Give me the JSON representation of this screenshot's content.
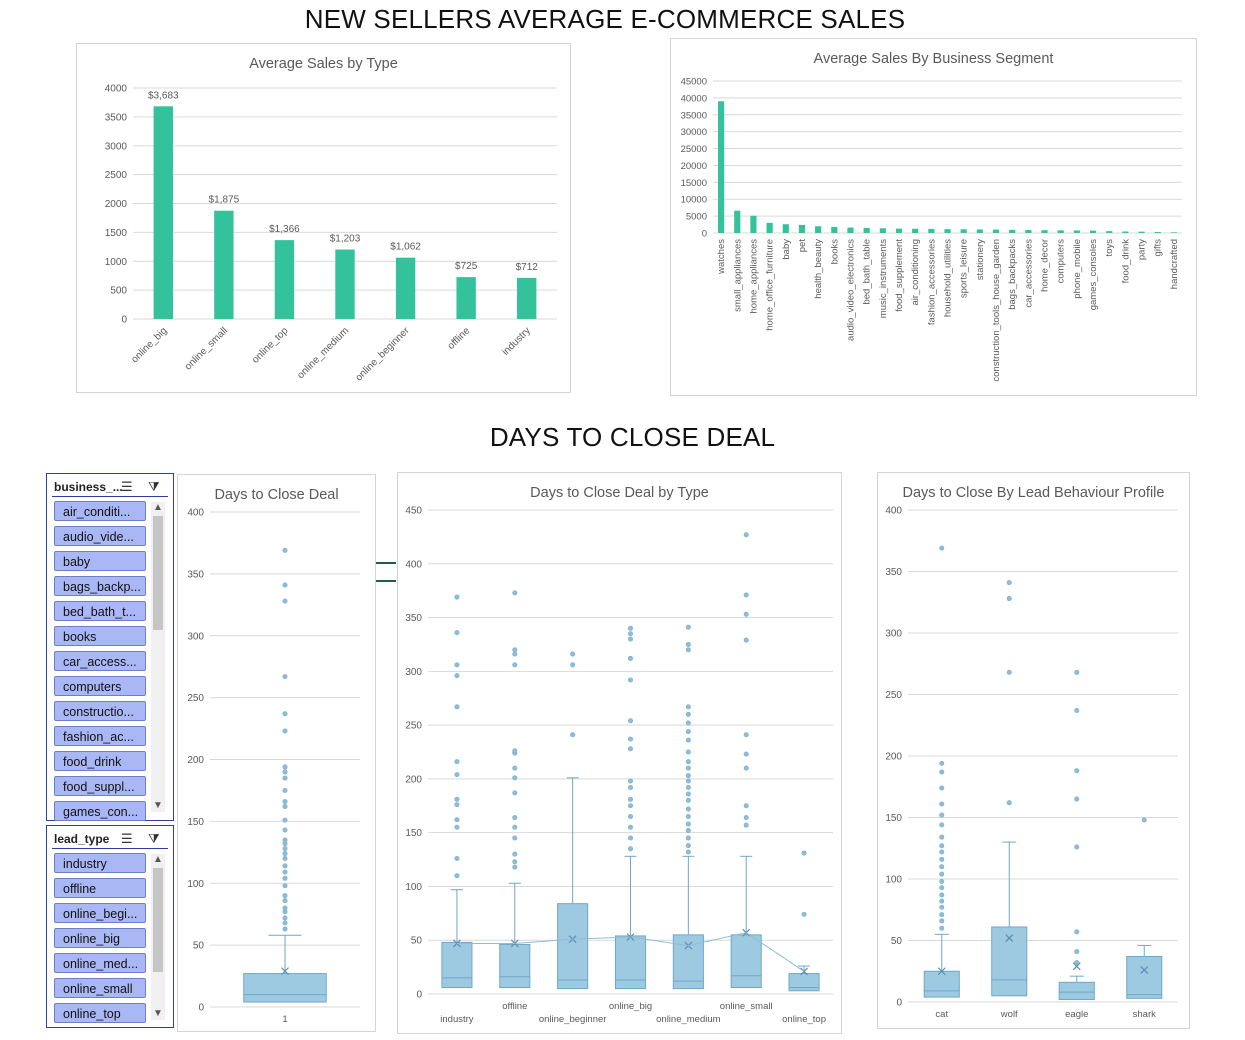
{
  "dashboard": {
    "title_sales": "NEW SELLERS AVERAGE E-COMMERCE SALES",
    "title_days": "DAYS TO CLOSE DEAL"
  },
  "colors": {
    "bar": "#34c29c",
    "box": "#9ecae1",
    "box_stroke": "#6fa8c8",
    "slicer_item": "#a9b8f5",
    "slicer_border": "#2f3f9f"
  },
  "slicers": {
    "business": {
      "header": "business_...",
      "items": [
        "air_conditi...",
        "audio_vide...",
        "baby",
        "bags_backp...",
        "bed_bath_t...",
        "books",
        "car_access...",
        "computers",
        "constructio...",
        "fashion_ac...",
        "food_drink",
        "food_suppl...",
        "games_con..."
      ]
    },
    "lead_type": {
      "header": "lead_type",
      "items": [
        "industry",
        "offline",
        "online_begi...",
        "online_big",
        "online_med...",
        "online_small",
        "online_top"
      ]
    }
  },
  "chart_data": [
    {
      "type": "bar",
      "title": "Average Sales by Type",
      "categories": [
        "online_big",
        "online_small",
        "online_top",
        "online_medium",
        "online_beginner",
        "offline",
        "industry"
      ],
      "values": [
        3683,
        1875,
        1366,
        1203,
        1062,
        725,
        712
      ],
      "data_labels": [
        "$3,683",
        "$1,875",
        "$1,366",
        "$1,203",
        "$1,062",
        "$725",
        "$712"
      ],
      "ylim": [
        0,
        4000
      ],
      "yticks": [
        "0",
        "500",
        "1000",
        "1500",
        "2000",
        "2500",
        "3000",
        "3500",
        "4000"
      ]
    },
    {
      "type": "bar",
      "title": "Average Sales By Business Segment",
      "categories": [
        "watches",
        "small_appliances",
        "home_appliances",
        "home_office_furniture",
        "baby",
        "pet",
        "health_beauty",
        "books",
        "audio_video_electronics",
        "bed_bath_table",
        "music_instruments",
        "food_supplement",
        "air_conditioning",
        "fashion_accessories",
        "household_utilities",
        "sports_leisure",
        "stationery",
        "construction_tools_house_garden",
        "bags_backpacks",
        "car_accessories",
        "home_decor",
        "computers",
        "phone_mobile",
        "games_consoles",
        "toys",
        "food_drink",
        "party",
        "gifts",
        "handcrafted"
      ],
      "values": [
        39000,
        6600,
        5100,
        3000,
        2600,
        2400,
        2000,
        1800,
        1600,
        1500,
        1400,
        1300,
        1250,
        1200,
        1150,
        1100,
        1050,
        1000,
        950,
        900,
        850,
        800,
        750,
        700,
        550,
        450,
        400,
        300,
        200
      ],
      "ylim": [
        0,
        45000
      ],
      "yticks": [
        "0",
        "5000",
        "10000",
        "15000",
        "20000",
        "25000",
        "30000",
        "35000",
        "40000",
        "45000"
      ]
    },
    {
      "type": "box",
      "title": "Days to Close Deal",
      "categories": [
        "1"
      ],
      "ylim": [
        0,
        400
      ],
      "yticks": [
        "0",
        "50",
        "100",
        "150",
        "200",
        "250",
        "300",
        "350",
        "400"
      ],
      "boxes": [
        {
          "min": 4,
          "q1": 4,
          "median": 10,
          "q3": 27,
          "max": 58,
          "mean": 29,
          "outliers": [
            63,
            68,
            72,
            77,
            80,
            86,
            90,
            98,
            104,
            109,
            114,
            120,
            124,
            128,
            132,
            135,
            143,
            151,
            162,
            166,
            175,
            185,
            190,
            194,
            223,
            237,
            267,
            328,
            341,
            369
          ]
        }
      ]
    },
    {
      "type": "box",
      "title": "Days to Close Deal by Type",
      "categories": [
        "industry",
        "offline",
        "online_beginner",
        "online_big",
        "online_medium",
        "online_small",
        "online_top"
      ],
      "ylim": [
        0,
        450
      ],
      "yticks": [
        "0",
        "50",
        "100",
        "150",
        "200",
        "250",
        "300",
        "350",
        "400",
        "450"
      ],
      "boxes": [
        {
          "min": 6,
          "q1": 6,
          "median": 15,
          "q3": 48,
          "max": 97,
          "mean": 47,
          "outliers": [
            110,
            126,
            155,
            162,
            176,
            181,
            204,
            216,
            267,
            296,
            306,
            336,
            369
          ]
        },
        {
          "min": 6,
          "q1": 6,
          "median": 16,
          "q3": 46,
          "max": 103,
          "mean": 47,
          "outliers": [
            118,
            123,
            130,
            145,
            155,
            164,
            187,
            201,
            210,
            224,
            226,
            306,
            316,
            320,
            373
          ]
        },
        {
          "min": 5,
          "q1": 5,
          "median": 13,
          "q3": 84,
          "max": 201,
          "mean": 51,
          "outliers": [
            241,
            306,
            316
          ]
        },
        {
          "min": 5,
          "q1": 5,
          "median": 13,
          "q3": 54,
          "max": 128,
          "mean": 53,
          "outliers": [
            135,
            145,
            155,
            165,
            175,
            181,
            192,
            198,
            228,
            237,
            254,
            292,
            312,
            330,
            335,
            340
          ]
        },
        {
          "min": 5,
          "q1": 5,
          "median": 12,
          "q3": 55,
          "max": 128,
          "mean": 45,
          "outliers": [
            132,
            138,
            145,
            152,
            158,
            165,
            172,
            180,
            186,
            192,
            198,
            203,
            210,
            216,
            225,
            236,
            244,
            252,
            260,
            267,
            320,
            325,
            341
          ]
        },
        {
          "min": 6,
          "q1": 6,
          "median": 17,
          "q3": 55,
          "max": 128,
          "mean": 57,
          "outliers": [
            157,
            164,
            175,
            210,
            223,
            241,
            329,
            353,
            371,
            427
          ]
        },
        {
          "min": 3,
          "q1": 3,
          "median": 6,
          "q3": 19,
          "max": 26,
          "mean": 21,
          "outliers": [
            74,
            131
          ]
        }
      ]
    },
    {
      "type": "box",
      "title": "Days to Close By Lead Behaviour Profile",
      "categories": [
        "cat",
        "wolf",
        "eagle",
        "shark"
      ],
      "ylim": [
        0,
        400
      ],
      "yticks": [
        "0",
        "50",
        "100",
        "150",
        "200",
        "250",
        "300",
        "350",
        "400"
      ],
      "boxes": [
        {
          "min": 4,
          "q1": 4,
          "median": 9,
          "q3": 25,
          "max": 55,
          "mean": 25,
          "outliers": [
            60,
            66,
            71,
            77,
            82,
            87,
            93,
            98,
            104,
            110,
            116,
            122,
            127,
            134,
            144,
            152,
            161,
            174,
            187,
            194,
            369
          ]
        },
        {
          "min": 5,
          "q1": 5,
          "median": 18,
          "q3": 61,
          "max": 130,
          "mean": 52,
          "outliers": [
            162,
            268,
            328,
            341
          ]
        },
        {
          "min": 2,
          "q1": 2,
          "median": 8,
          "q3": 16,
          "max": 21,
          "mean": 29,
          "outliers": [
            32,
            41,
            57,
            126,
            165,
            188,
            237,
            268
          ]
        },
        {
          "min": 3,
          "q1": 3,
          "median": 6,
          "q3": 37,
          "max": 46,
          "mean": 26,
          "outliers": [
            148
          ]
        }
      ]
    }
  ]
}
